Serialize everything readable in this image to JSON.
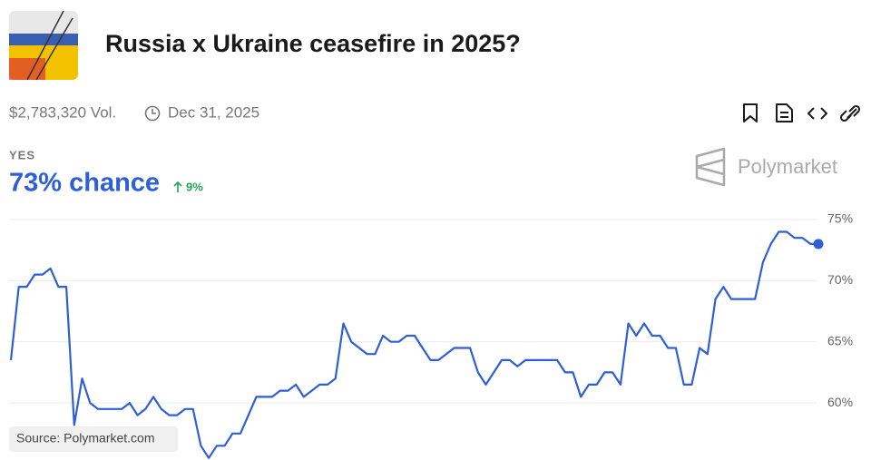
{
  "header": {
    "title": "Russia x Ukraine ceasefire in 2025?",
    "volume": "$2,783,320 Vol.",
    "end_date": "Dec 31, 2025"
  },
  "outcome": {
    "label": "YES",
    "chance": "73% chance",
    "change": "9%"
  },
  "brand": "Polymarket",
  "source": "Source: Polymarket.com",
  "chart_data": {
    "type": "line",
    "series": [
      {
        "color": "#2f5fd6",
        "values": [
          63.5,
          69.5,
          69.5,
          70.5,
          70.5,
          71,
          69.5,
          69.5,
          58.2,
          62,
          60,
          59.5,
          59.5,
          59.5,
          59.5,
          60,
          59,
          59.5,
          60.5,
          59.5,
          59,
          59,
          59.5,
          59.5,
          56.5,
          55.5,
          56.5,
          56.5,
          57.5,
          57.5,
          59,
          60.5,
          60.5,
          60.5,
          61,
          61,
          61.5,
          60.5,
          61,
          61.5,
          61.5,
          62,
          66.5,
          65,
          64.5,
          64,
          64,
          65.5,
          65,
          65,
          65.5,
          65.5,
          64.5,
          63.5,
          63.5,
          64,
          64.5,
          64.5,
          64.5,
          62.5,
          61.5,
          62.5,
          63.5,
          63.5,
          63,
          63.5,
          63.5,
          63.5,
          63.5,
          63.5,
          62.5,
          62.5,
          60.5,
          61.5,
          61.5,
          62.5,
          62.5,
          61.5,
          66.5,
          65.5,
          66.5,
          65.5,
          65.5,
          64.5,
          64.5,
          61.5,
          61.5,
          64.5,
          64,
          68.5,
          69.5,
          68.5,
          68.5,
          68.5,
          68.5,
          71.5,
          73,
          74,
          74,
          73.5,
          73.5,
          73,
          73
        ]
      }
    ],
    "ylim": [
      55.5,
      76
    ],
    "yticks": [
      {
        "value": 60,
        "label": "60%"
      },
      {
        "value": 65,
        "label": "65%"
      },
      {
        "value": 70,
        "label": "70%"
      },
      {
        "value": 75,
        "label": "75%"
      }
    ],
    "grid": true
  }
}
